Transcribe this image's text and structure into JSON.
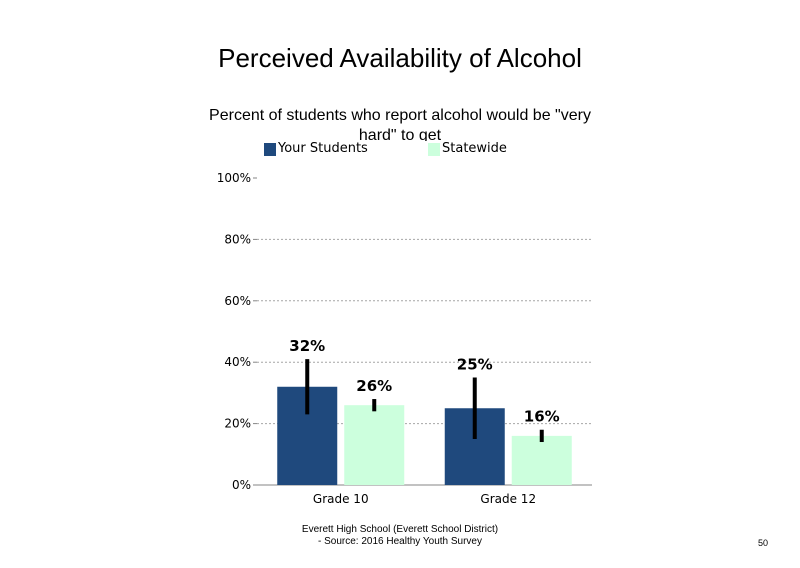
{
  "page": {
    "title": "Perceived Availability of Alcohol",
    "subtitle": "Percent of students who report alcohol would be \"very hard\" to get",
    "footer_line1": "Everett High School (Everett School District)",
    "footer_line2": "- Source: 2016 Healthy Youth Survey",
    "page_number": "50"
  },
  "chart_data": {
    "type": "bar",
    "title": "Perceived Availability of Alcohol",
    "subtitle": "Percent of students who report alcohol would be \"very hard\" to get",
    "categories": [
      "Grade 10",
      "Grade 12"
    ],
    "series": [
      {
        "name": "Your Students",
        "color": "#1f497d",
        "values": [
          32,
          25
        ],
        "labels": [
          "32%",
          "25%"
        ],
        "error_low": [
          23,
          15
        ],
        "error_high": [
          41,
          35
        ]
      },
      {
        "name": "Statewide",
        "color": "#ccffdd",
        "values": [
          26,
          16
        ],
        "labels": [
          "26%",
          "16%"
        ],
        "error_low": [
          24,
          14
        ],
        "error_high": [
          28,
          18
        ]
      }
    ],
    "ylim": [
      0,
      100
    ],
    "yticks": [
      0,
      20,
      40,
      60,
      80,
      100
    ],
    "ytick_labels": [
      "0%",
      "20%",
      "40%",
      "60%",
      "80%",
      "100%"
    ],
    "gridlines": [
      20,
      40,
      60,
      80
    ],
    "legend_position": "top",
    "xlabel": "",
    "ylabel": ""
  }
}
